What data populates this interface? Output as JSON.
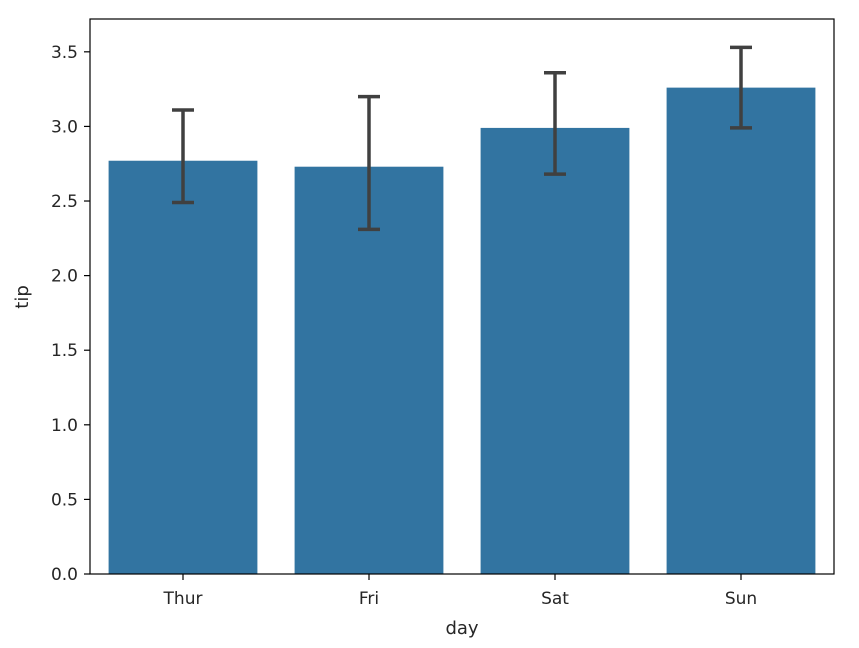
{
  "chart_data": {
    "type": "bar",
    "title": "",
    "xlabel": "day",
    "ylabel": "tip",
    "categories": [
      "Thur",
      "Fri",
      "Sat",
      "Sun"
    ],
    "values": [
      2.77,
      2.73,
      2.99,
      3.26
    ],
    "error_low": [
      2.49,
      2.31,
      2.68,
      2.99
    ],
    "error_high": [
      3.11,
      3.2,
      3.36,
      3.53
    ],
    "ylim": [
      0,
      3.72
    ],
    "yticks": [
      0.0,
      0.5,
      1.0,
      1.5,
      2.0,
      2.5,
      3.0,
      3.5
    ],
    "ytick_labels": [
      "0.0",
      "0.5",
      "1.0",
      "1.5",
      "2.0",
      "2.5",
      "3.0",
      "3.5"
    ],
    "grid": false,
    "bar_color": "#3274a1",
    "errorbar_color": "#404040"
  }
}
